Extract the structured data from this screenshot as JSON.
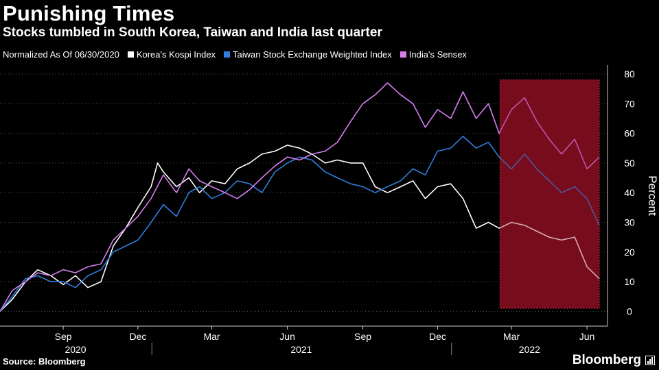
{
  "title": "Punishing Times",
  "subtitle": "Stocks tumbled in South Korea, Taiwan and India last quarter",
  "source": "Source: Bloomberg",
  "brand": "Bloomberg",
  "colors": {
    "background": "#000000",
    "kospi": "#ffffff",
    "taiex": "#2f7fdc",
    "sensex": "#d77ff0",
    "highlight": "#7a0d1c",
    "highlight_border": "#e0304a"
  },
  "chart_data": {
    "type": "line",
    "title": "Punishing Times",
    "subtitle": "Stocks tumbled in South Korea, Taiwan and India last quarter",
    "legend_note": "Normalized As Of 06/30/2020",
    "ylabel": "Percent",
    "ylim": [
      -5,
      83
    ],
    "yticks": [
      0,
      10,
      20,
      30,
      40,
      50,
      60,
      70,
      80
    ],
    "y_axis_side": "right",
    "grid": true,
    "legend_placement": "top",
    "x_ticks": [
      {
        "date": "2020-09",
        "label": "Sep"
      },
      {
        "date": "2020-12",
        "label": "Dec"
      },
      {
        "date": "2021-03",
        "label": "Mar"
      },
      {
        "date": "2021-06",
        "label": "Jun"
      },
      {
        "date": "2021-09",
        "label": "Sep"
      },
      {
        "date": "2021-12",
        "label": "Dec"
      },
      {
        "date": "2022-03",
        "label": "Mar"
      },
      {
        "date": "2022-06",
        "label": "Jun"
      }
    ],
    "year_labels": [
      "2020",
      "2021",
      "2022"
    ],
    "highlight_range": {
      "x": [
        "2022-03-01",
        "2022-06-30"
      ],
      "y": [
        1,
        78
      ]
    },
    "series": [
      {
        "name": "Korea's Kospi Index",
        "color": "#ffffff",
        "x": [
          "2020-06-30",
          "2020-07-15",
          "2020-07-31",
          "2020-08-15",
          "2020-08-31",
          "2020-09-15",
          "2020-09-30",
          "2020-10-15",
          "2020-10-31",
          "2020-11-15",
          "2020-11-30",
          "2020-12-15",
          "2020-12-31",
          "2021-01-08",
          "2021-01-15",
          "2021-01-31",
          "2021-02-15",
          "2021-02-28",
          "2021-03-15",
          "2021-03-31",
          "2021-04-15",
          "2021-04-30",
          "2021-05-15",
          "2021-05-31",
          "2021-06-15",
          "2021-06-30",
          "2021-07-15",
          "2021-07-31",
          "2021-08-15",
          "2021-08-31",
          "2021-09-15",
          "2021-09-30",
          "2021-10-15",
          "2021-10-31",
          "2021-11-15",
          "2021-11-30",
          "2021-12-15",
          "2021-12-31",
          "2022-01-15",
          "2022-01-31",
          "2022-02-15",
          "2022-02-28",
          "2022-03-15",
          "2022-03-31",
          "2022-04-15",
          "2022-04-30",
          "2022-05-15",
          "2022-05-31",
          "2022-06-15",
          "2022-06-30"
        ],
        "values": [
          0,
          4,
          10,
          14,
          12,
          9,
          12,
          8,
          10,
          22,
          28,
          35,
          42,
          50,
          47,
          42,
          45,
          40,
          44,
          43,
          48,
          50,
          53,
          54,
          56,
          55,
          53,
          50,
          51,
          50,
          50,
          42,
          40,
          42,
          44,
          38,
          42,
          43,
          38,
          28,
          30,
          28,
          30,
          29,
          27,
          25,
          24,
          25,
          15,
          11
        ]
      },
      {
        "name": "Taiwan Stock Exchange Weighted Index",
        "color": "#2f7fdc",
        "x": [
          "2020-06-30",
          "2020-07-15",
          "2020-07-31",
          "2020-08-15",
          "2020-08-31",
          "2020-09-15",
          "2020-09-30",
          "2020-10-15",
          "2020-10-31",
          "2020-11-15",
          "2020-11-30",
          "2020-12-15",
          "2020-12-31",
          "2021-01-15",
          "2021-01-31",
          "2021-02-15",
          "2021-02-28",
          "2021-03-15",
          "2021-03-31",
          "2021-04-15",
          "2021-04-30",
          "2021-05-15",
          "2021-05-31",
          "2021-06-15",
          "2021-06-30",
          "2021-07-15",
          "2021-07-31",
          "2021-08-15",
          "2021-08-31",
          "2021-09-15",
          "2021-09-30",
          "2021-10-15",
          "2021-10-31",
          "2021-11-15",
          "2021-11-30",
          "2021-12-15",
          "2021-12-31",
          "2022-01-15",
          "2022-01-31",
          "2022-02-15",
          "2022-02-28",
          "2022-03-15",
          "2022-03-31",
          "2022-04-15",
          "2022-04-30",
          "2022-05-15",
          "2022-05-31",
          "2022-06-15",
          "2022-06-30"
        ],
        "values": [
          0,
          5,
          11,
          12,
          10,
          10,
          8,
          12,
          14,
          20,
          22,
          24,
          30,
          36,
          32,
          40,
          42,
          38,
          40,
          44,
          43,
          40,
          47,
          50,
          52,
          51,
          47,
          45,
          43,
          42,
          40,
          42,
          44,
          48,
          46,
          54,
          55,
          59,
          55,
          57,
          52,
          48,
          53,
          48,
          44,
          40,
          42,
          38,
          29
        ]
      },
      {
        "name": "India's Sensex",
        "color": "#d77ff0",
        "x": [
          "2020-06-30",
          "2020-07-15",
          "2020-07-31",
          "2020-08-15",
          "2020-08-31",
          "2020-09-15",
          "2020-09-30",
          "2020-10-15",
          "2020-10-31",
          "2020-11-15",
          "2020-11-30",
          "2020-12-15",
          "2020-12-31",
          "2021-01-15",
          "2021-01-31",
          "2021-02-15",
          "2021-02-28",
          "2021-03-15",
          "2021-03-31",
          "2021-04-15",
          "2021-04-30",
          "2021-05-15",
          "2021-05-31",
          "2021-06-15",
          "2021-06-30",
          "2021-07-15",
          "2021-07-31",
          "2021-08-15",
          "2021-08-31",
          "2021-09-15",
          "2021-09-30",
          "2021-10-15",
          "2021-10-31",
          "2021-11-15",
          "2021-11-30",
          "2021-12-15",
          "2021-12-31",
          "2022-01-15",
          "2022-01-31",
          "2022-02-15",
          "2022-02-28",
          "2022-03-15",
          "2022-03-31",
          "2022-04-15",
          "2022-04-30",
          "2022-05-15",
          "2022-05-31",
          "2022-06-15",
          "2022-06-30"
        ],
        "values": [
          0,
          7,
          10,
          13,
          12,
          14,
          13,
          15,
          16,
          24,
          28,
          32,
          38,
          46,
          40,
          48,
          44,
          42,
          40,
          38,
          41,
          45,
          49,
          52,
          51,
          53,
          54,
          57,
          64,
          70,
          73,
          77,
          73,
          70,
          62,
          68,
          65,
          74,
          65,
          70,
          60,
          68,
          72,
          64,
          58,
          53,
          58,
          48,
          52
        ]
      }
    ]
  }
}
